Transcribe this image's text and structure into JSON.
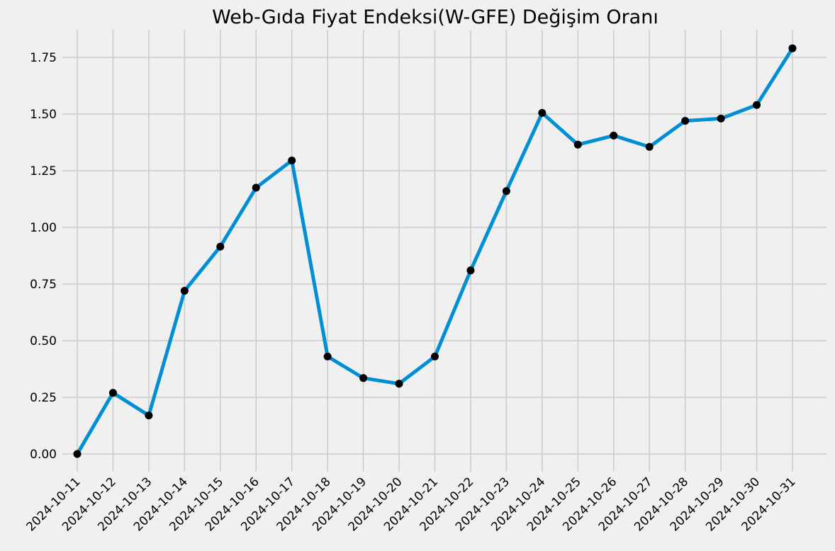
{
  "chart_data": {
    "type": "line",
    "title": "Web-Gıda Fiyat Endeksi(W-GFE) Değişim Oranı",
    "xlabel": "",
    "ylabel": "",
    "x": [
      "2024-10-11",
      "2024-10-12",
      "2024-10-13",
      "2024-10-14",
      "2024-10-15",
      "2024-10-16",
      "2024-10-17",
      "2024-10-18",
      "2024-10-19",
      "2024-10-20",
      "2024-10-21",
      "2024-10-22",
      "2024-10-23",
      "2024-10-24",
      "2024-10-25",
      "2024-10-26",
      "2024-10-27",
      "2024-10-28",
      "2024-10-29",
      "2024-10-30",
      "2024-10-31"
    ],
    "series": [
      {
        "values": [
          0.0,
          0.27,
          0.17,
          0.72,
          0.915,
          1.175,
          1.295,
          0.43,
          0.335,
          0.31,
          0.43,
          0.81,
          1.16,
          1.505,
          1.365,
          1.405,
          1.355,
          1.47,
          1.48,
          1.54,
          1.79
        ]
      }
    ],
    "yticks": [
      "0.00",
      "0.25",
      "0.50",
      "0.75",
      "1.00",
      "1.25",
      "1.50",
      "1.75"
    ],
    "ylim": [
      -0.05,
      1.87
    ],
    "grid": true,
    "legend": "none",
    "colors": {
      "line": "#008fd5",
      "marker": "#000000",
      "grid": "#cbcbcb",
      "background": "#f0f0f0"
    }
  }
}
